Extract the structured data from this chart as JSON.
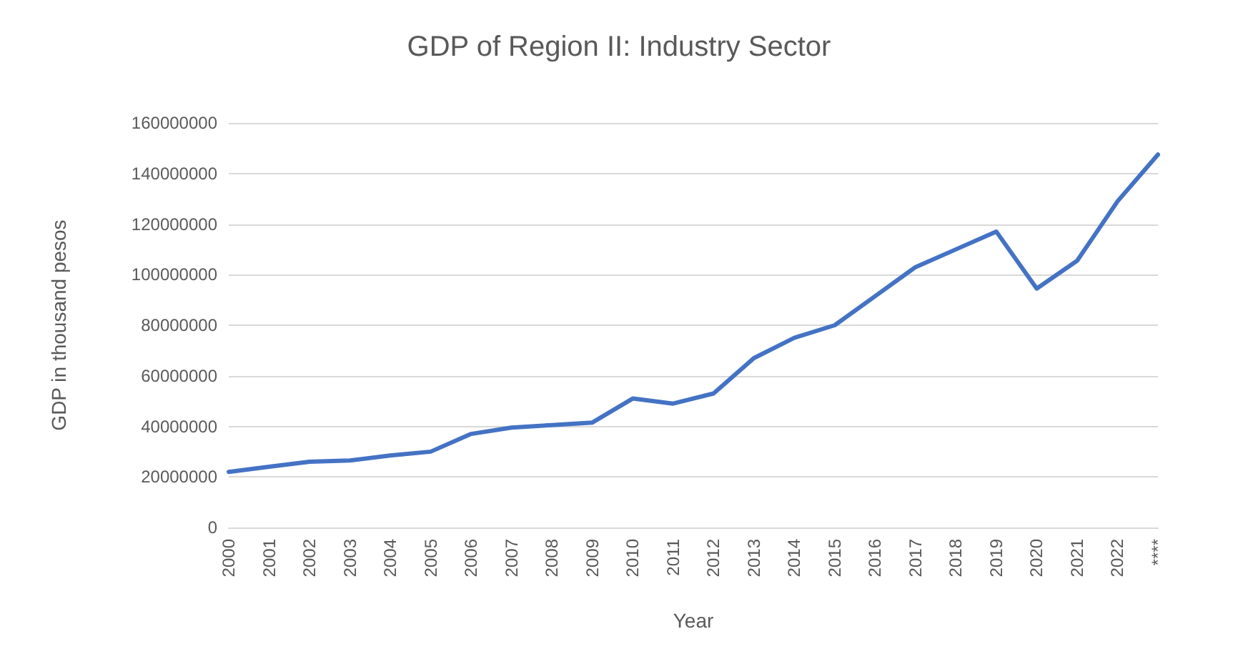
{
  "chart_data": {
    "type": "line",
    "title": "GDP of Region II: Industry Sector",
    "xlabel": "Year",
    "ylabel": "GDP in thousand pesos",
    "categories": [
      "2000",
      "2001",
      "2002",
      "2003",
      "2004",
      "2005",
      "2006",
      "2007",
      "2008",
      "2009",
      "2010",
      "2011",
      "2012",
      "2013",
      "2014",
      "2015",
      "2016",
      "2017",
      "2018",
      "2019",
      "2020",
      "2021",
      "2022",
      "****"
    ],
    "series": [
      {
        "color": "#4472c4",
        "values": [
          22000000,
          24000000,
          26000000,
          26500000,
          28500000,
          30000000,
          37000000,
          39500000,
          40500000,
          41500000,
          51000000,
          49000000,
          53000000,
          67000000,
          75000000,
          80000000,
          91500000,
          103000000,
          110000000,
          117000000,
          94500000,
          105500000,
          129000000,
          147500000
        ]
      }
    ],
    "ylim": [
      0,
      160000000
    ],
    "yticks": [
      0,
      20000000,
      40000000,
      60000000,
      80000000,
      100000000,
      120000000,
      140000000,
      160000000
    ],
    "grid": "y",
    "marker": "none",
    "line_style": "solid"
  }
}
